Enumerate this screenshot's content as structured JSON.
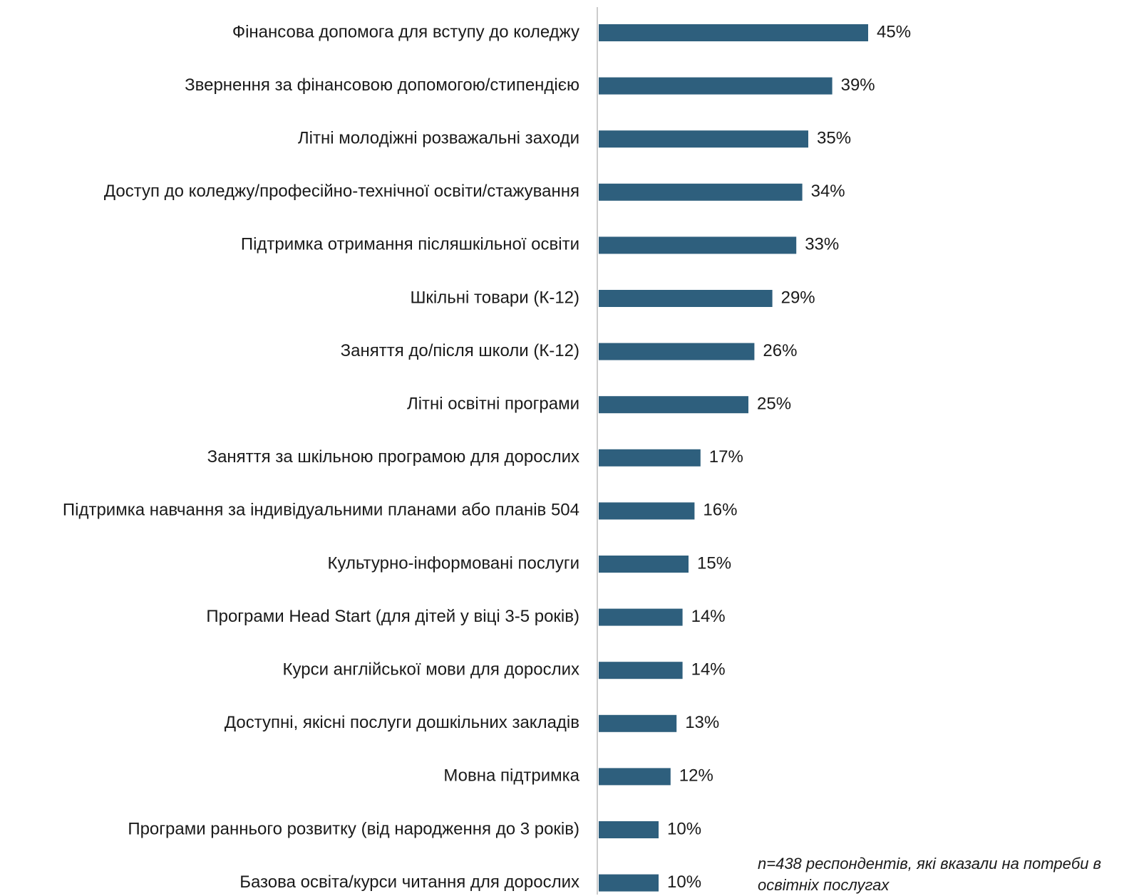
{
  "chart_data": {
    "type": "bar",
    "orientation": "horizontal",
    "categories": [
      "Фінансова допомога для вступу до коледжу",
      "Звернення за фінансовою допомогою/стипендією",
      "Літні молодіжні розважальні заходи",
      "Доступ до коледжу/професійно-технічної освіти/стажування",
      "Підтримка отримання післяшкільної освіти",
      "Шкільні товари (К-12)",
      "Заняття до/після школи (К-12)",
      "Літні освітні програми",
      "Заняття за шкільною програмою для дорослих",
      "Підтримка навчання за індивідуальними планами або планів 504",
      "Культурно-інформовані послуги",
      "Програми Head Start (для дітей у віці 3-5 років)",
      "Курси англійської мови для дорослих",
      "Доступні, якісні послуги дошкільних закладів",
      "Мовна підтримка",
      "Програми раннього розвитку (від народження до 3 років)",
      "Базова освіта/курси читання для дорослих"
    ],
    "values": [
      45,
      39,
      35,
      34,
      33,
      29,
      26,
      25,
      17,
      16,
      15,
      14,
      14,
      13,
      12,
      10,
      10
    ],
    "value_labels": [
      "45%",
      "39%",
      "35%",
      "34%",
      "33%",
      "29%",
      "26%",
      "25%",
      "17%",
      "16%",
      "15%",
      "14%",
      "14%",
      "13%",
      "12%",
      "10%",
      "10%"
    ],
    "unit": "%",
    "xlim": [
      0,
      50
    ],
    "grid": false,
    "legend": "none",
    "bar_color": "#2e5f7d",
    "axis_color": "#cccccc"
  },
  "footnote": "n=438 респондентів, які вказали на потреби в освітніх послугах"
}
